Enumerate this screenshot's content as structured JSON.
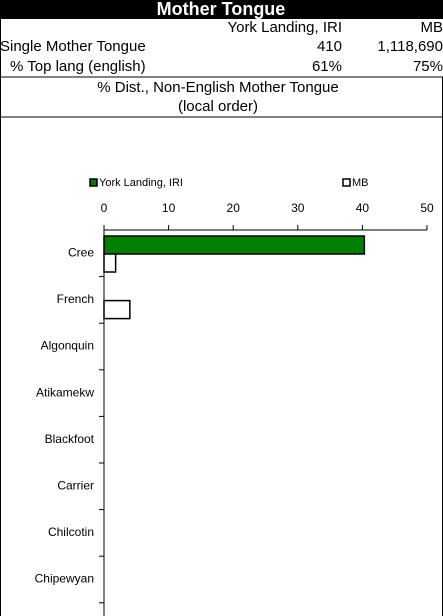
{
  "header": {
    "title": "Mother Tongue",
    "subtitle": "% Dist., Non-English Mother Tongue",
    "note": "(local order)",
    "columns": [
      "York Landing, IRI",
      "MB"
    ],
    "rows": [
      [
        "Single Mother Tongue",
        "410",
        "1,118,690"
      ],
      [
        "% Top lang (english)",
        "61%",
        "75%"
      ]
    ]
  },
  "chart_data": {
    "type": "hbar",
    "categories": [
      "Cree",
      "French",
      "Algonquin",
      "Atikamekw",
      "Blackfoot",
      "Carrier",
      "Chilcotin",
      "Chipewyan"
    ],
    "series": [
      {
        "name": "York Landing, IRI",
        "color": "#008000",
        "values": [
          40.3,
          0,
          0,
          0,
          0,
          0,
          0,
          0
        ]
      },
      {
        "name": "MB",
        "color": "#ffffff",
        "values": [
          1.8,
          4.0,
          0,
          0,
          0,
          0,
          0,
          0
        ]
      }
    ],
    "xlim": [
      0,
      50
    ],
    "xticks": [
      0,
      10,
      20,
      30,
      40,
      50
    ],
    "legend": "top"
  }
}
